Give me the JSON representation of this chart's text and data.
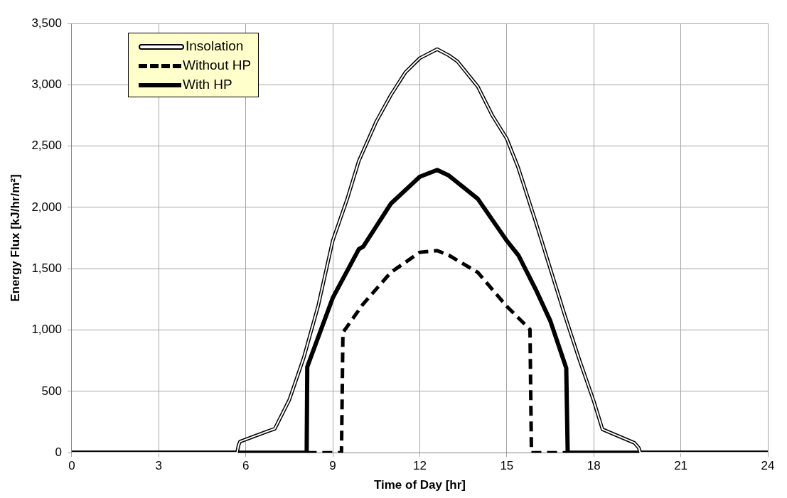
{
  "chart_data": {
    "type": "line",
    "xlabel": "Time of Day [hr]",
    "ylabel": "Energy Flux [kJ/hr/m²]",
    "xlim": [
      0,
      24
    ],
    "xticks": [
      0,
      3,
      6,
      9,
      12,
      15,
      18,
      21,
      24
    ],
    "ylim": [
      0,
      3500
    ],
    "yticks": [
      0,
      500,
      {
        "value": 1000,
        "label": "1,000"
      },
      {
        "value": 1500,
        "label": "1,500"
      },
      {
        "value": 2000,
        "label": "2,000"
      },
      {
        "value": 2500,
        "label": "2,500"
      },
      {
        "value": 3000,
        "label": "3,000"
      },
      {
        "value": 3500,
        "label": "3,500"
      }
    ],
    "grid": true,
    "legend": "top left",
    "marker": "none",
    "series": [
      {
        "name": "Insolation",
        "color": "#000000",
        "line_style": "solid",
        "x": [
          0,
          5.7,
          5.75,
          5.8,
          6.7,
          7,
          7.5,
          8,
          8.5,
          9,
          9.5,
          9.9,
          10.5,
          11,
          11.5,
          12,
          12.6,
          13,
          13.3,
          14,
          14.5,
          15,
          15.4,
          16,
          16.5,
          17,
          17.5,
          18,
          18.3,
          19.4,
          19.55,
          19.6,
          24
        ],
        "values": [
          0,
          0,
          60,
          90,
          170,
          195,
          430,
          775,
          1200,
          1730,
          2070,
          2380,
          2700,
          2915,
          3100,
          3217,
          3290,
          3240,
          3190,
          2985,
          2750,
          2560,
          2320,
          1880,
          1500,
          1120,
          760,
          420,
          190,
          80,
          40,
          0,
          0
        ]
      },
      {
        "name": "Without HP",
        "color": "#000000",
        "line_style": "dashed",
        "x": [
          8.1,
          9.3,
          9.35,
          10.05,
          11,
          12,
          12.6,
          13,
          14,
          15,
          15.8,
          15.85,
          17.1
        ],
        "values": [
          0,
          0,
          980,
          1213,
          1470,
          1634,
          1648,
          1610,
          1470,
          1193,
          1005,
          0,
          0
        ]
      },
      {
        "name": "With HP",
        "color": "#000000",
        "line_style": "solid",
        "x": [
          0,
          8.1,
          8.12,
          9,
          9.9,
          10.05,
          11,
          12,
          12.6,
          13,
          14,
          15,
          15.4,
          16,
          16.5,
          17.05,
          17.1,
          24
        ],
        "values": [
          0,
          0,
          700,
          1263,
          1660,
          1680,
          2030,
          2250,
          2305,
          2260,
          2070,
          1728,
          1610,
          1330,
          1075,
          690,
          0,
          0
        ]
      }
    ]
  }
}
